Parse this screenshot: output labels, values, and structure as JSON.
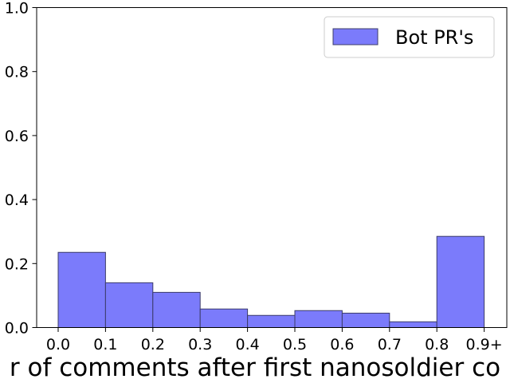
{
  "chart_data": {
    "type": "bar",
    "title": "",
    "xlabel": "r of comments after first nanosoldier co",
    "ylabel": "",
    "x_ticks": [
      "0.0",
      "0.1",
      "0.2",
      "0.3",
      "0.4",
      "0.5",
      "0.6",
      "0.7",
      "0.8",
      "0.9+"
    ],
    "y_ticks": [
      "0.0",
      "0.2",
      "0.4",
      "0.6",
      "0.8",
      "1.0"
    ],
    "ylim": [
      0,
      1.0
    ],
    "grid": false,
    "legend_position": "top-right",
    "series": [
      {
        "name": "Bot PR's",
        "color": "#7b7bfb",
        "edge_color": "#3c3c6a",
        "bins": [
          {
            "start": 0.0,
            "end": 0.1,
            "value": 0.235
          },
          {
            "start": 0.1,
            "end": 0.2,
            "value": 0.14
          },
          {
            "start": 0.2,
            "end": 0.3,
            "value": 0.11
          },
          {
            "start": 0.3,
            "end": 0.4,
            "value": 0.058
          },
          {
            "start": 0.4,
            "end": 0.5,
            "value": 0.038
          },
          {
            "start": 0.5,
            "end": 0.6,
            "value": 0.053
          },
          {
            "start": 0.6,
            "end": 0.7,
            "value": 0.045
          },
          {
            "start": 0.7,
            "end": 0.8,
            "value": 0.018
          },
          {
            "start": 0.8,
            "end": 0.9,
            "value": 0.285
          }
        ]
      }
    ]
  }
}
